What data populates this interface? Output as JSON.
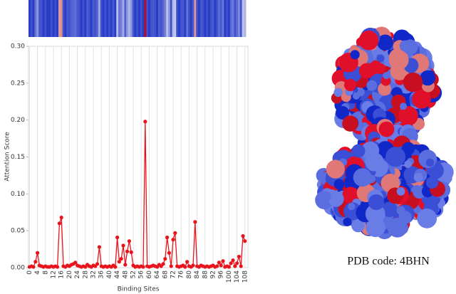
{
  "chart_data": {
    "type": "line",
    "xlabel": "Binding Sites",
    "ylabel": "Attention Score",
    "x": [
      0,
      1,
      2,
      3,
      4,
      5,
      6,
      7,
      8,
      9,
      10,
      11,
      12,
      13,
      14,
      15,
      16,
      17,
      18,
      19,
      20,
      21,
      22,
      23,
      24,
      25,
      26,
      27,
      28,
      29,
      30,
      31,
      32,
      33,
      34,
      35,
      36,
      37,
      38,
      39,
      40,
      41,
      42,
      43,
      44,
      45,
      46,
      47,
      48,
      49,
      50,
      51,
      52,
      53,
      54,
      55,
      56,
      57,
      58,
      59,
      60,
      61,
      62,
      63,
      64,
      65,
      66,
      67,
      68,
      69,
      70,
      71,
      72,
      73,
      74,
      75,
      76,
      77,
      78,
      79,
      80,
      81,
      82,
      83,
      84,
      85,
      86,
      87,
      88,
      89,
      90,
      91,
      92,
      93,
      94,
      95,
      96,
      97,
      98,
      99,
      100,
      101,
      102,
      103,
      104,
      105,
      106,
      107,
      108
    ],
    "values": [
      0.001,
      0.002,
      0.001,
      0.008,
      0.02,
      0.003,
      0.002,
      0.001,
      0.002,
      0.001,
      0.001,
      0.002,
      0.001,
      0.002,
      0.001,
      0.06,
      0.068,
      0.002,
      0.001,
      0.003,
      0.002,
      0.004,
      0.005,
      0.007,
      0.003,
      0.002,
      0.001,
      0.002,
      0.001,
      0.004,
      0.002,
      0.001,
      0.003,
      0.002,
      0.005,
      0.028,
      0.002,
      0.001,
      0.002,
      0.001,
      0.002,
      0.001,
      0.003,
      0.001,
      0.041,
      0.008,
      0.012,
      0.03,
      0.004,
      0.022,
      0.036,
      0.021,
      0.003,
      0.001,
      0.002,
      0.001,
      0.002,
      0.001,
      0.198,
      0.002,
      0.001,
      0.002,
      0.003,
      0.002,
      0.001,
      0.004,
      0.002,
      0.005,
      0.012,
      0.041,
      0.02,
      0.002,
      0.038,
      0.047,
      0.002,
      0.001,
      0.002,
      0.003,
      0.001,
      0.008,
      0.002,
      0.001,
      0.003,
      0.062,
      0.002,
      0.001,
      0.003,
      0.002,
      0.001,
      0.002,
      0.001,
      0.002,
      0.003,
      0.001,
      0.002,
      0.007,
      0.003,
      0.009,
      0.001,
      0.002,
      0.001,
      0.006,
      0.01,
      0.002,
      0.006,
      0.015,
      0.002,
      0.043,
      0.036
    ],
    "color": "#e8141c",
    "xlim": [
      -0.5,
      109.5
    ],
    "ylim": [
      0,
      0.3
    ],
    "xticks": [
      0,
      4,
      8,
      12,
      16,
      20,
      24,
      28,
      32,
      36,
      40,
      44,
      48,
      52,
      56,
      60,
      64,
      68,
      72,
      76,
      80,
      84,
      88,
      92,
      96,
      100,
      104,
      108
    ],
    "yticks": [
      {
        "value": 0,
        "label": "0.00"
      },
      {
        "value": 0.05,
        "label": "0.05"
      },
      {
        "value": 0.1,
        "label": "0.10"
      },
      {
        "value": 0.15,
        "label": "0.15"
      },
      {
        "value": 0.2,
        "label": "0.20"
      },
      {
        "value": 0.25,
        "label": "0.25"
      },
      {
        "value": 0.3,
        "label": "0.30"
      }
    ],
    "grid": "x",
    "heatmap_strip": true
  },
  "caption": "PDB code: 4BHN"
}
